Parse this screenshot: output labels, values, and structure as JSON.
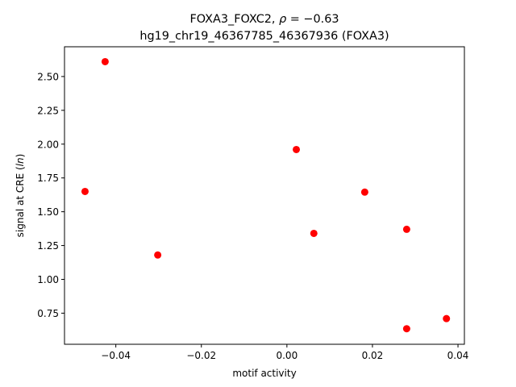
{
  "chart_data": {
    "type": "scatter",
    "title_line1_prefix": "FOXA3_FOXC2, ",
    "title_line1_rho": "ρ",
    "title_line1_suffix": " = −0.63",
    "title_line2": "hg19_chr19_46367785_46367936 (FOXA3)",
    "xlabel": "motif activity",
    "ylabel_prefix": "signal at CRE (",
    "ylabel_italic": "ln",
    "ylabel_suffix": ")",
    "xlim": [
      -0.052,
      0.0415
    ],
    "ylim": [
      0.52,
      2.72
    ],
    "xticks": [
      -0.04,
      -0.02,
      0.0,
      0.02,
      0.04
    ],
    "xtick_labels": [
      "−0.04",
      "−0.02",
      "0.00",
      "0.02",
      "0.04"
    ],
    "yticks": [
      0.75,
      1.0,
      1.25,
      1.5,
      1.75,
      2.0,
      2.25,
      2.5
    ],
    "ytick_labels": [
      "0.75",
      "1.00",
      "1.25",
      "1.50",
      "1.75",
      "2.00",
      "2.25",
      "2.50"
    ],
    "grid": false,
    "point_color": "#ff0000",
    "points": [
      {
        "x": -0.0425,
        "y": 2.61
      },
      {
        "x": -0.0472,
        "y": 1.65
      },
      {
        "x": -0.0302,
        "y": 1.18
      },
      {
        "x": 0.0022,
        "y": 1.96
      },
      {
        "x": 0.0063,
        "y": 1.34
      },
      {
        "x": 0.0182,
        "y": 1.645
      },
      {
        "x": 0.028,
        "y": 1.37
      },
      {
        "x": 0.028,
        "y": 0.635
      },
      {
        "x": 0.0373,
        "y": 0.71
      }
    ]
  }
}
